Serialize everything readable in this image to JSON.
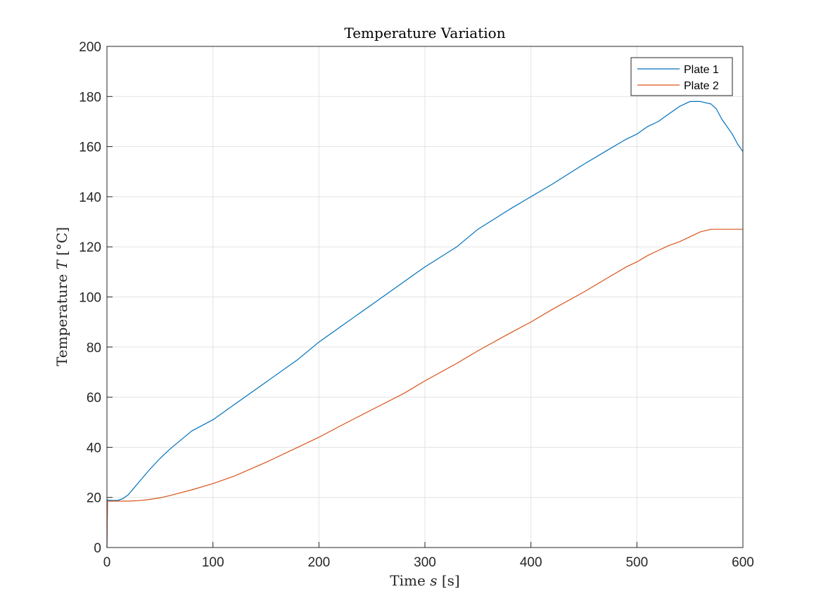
{
  "chart_data": {
    "type": "line",
    "title": "Temperature Variation",
    "xlabel": "Time s [s]",
    "ylabel": "Temperature T [°C]",
    "xlim": [
      0,
      600
    ],
    "ylim": [
      0,
      200
    ],
    "xticks": [
      0,
      100,
      200,
      300,
      400,
      500,
      600
    ],
    "yticks": [
      0,
      20,
      40,
      60,
      80,
      100,
      120,
      140,
      160,
      180,
      200
    ],
    "grid": true,
    "legend_position": "top-right",
    "series": [
      {
        "name": "Plate 1",
        "color": "#0072BD",
        "points": [
          [
            0,
            0
          ],
          [
            0.5,
            19
          ],
          [
            5,
            18.8
          ],
          [
            10,
            18.8
          ],
          [
            15,
            19.5
          ],
          [
            20,
            21
          ],
          [
            25,
            23.5
          ],
          [
            30,
            26
          ],
          [
            40,
            31
          ],
          [
            50,
            35.5
          ],
          [
            60,
            39.5
          ],
          [
            70,
            43
          ],
          [
            80,
            46.5
          ],
          [
            100,
            51
          ],
          [
            120,
            57
          ],
          [
            150,
            66
          ],
          [
            180,
            75
          ],
          [
            200,
            82
          ],
          [
            220,
            88
          ],
          [
            250,
            97
          ],
          [
            280,
            106
          ],
          [
            300,
            112
          ],
          [
            330,
            120
          ],
          [
            350,
            127
          ],
          [
            380,
            135
          ],
          [
            400,
            140
          ],
          [
            420,
            145
          ],
          [
            450,
            153
          ],
          [
            470,
            158
          ],
          [
            490,
            163
          ],
          [
            500,
            165
          ],
          [
            510,
            168
          ],
          [
            520,
            170
          ],
          [
            530,
            173
          ],
          [
            540,
            176
          ],
          [
            550,
            178
          ],
          [
            560,
            178
          ],
          [
            570,
            177
          ],
          [
            575,
            175
          ],
          [
            580,
            171
          ],
          [
            585,
            168
          ],
          [
            590,
            165
          ],
          [
            595,
            161
          ],
          [
            600,
            158
          ]
        ]
      },
      {
        "name": "Plate 2",
        "color": "#D95319",
        "points": [
          [
            0,
            0
          ],
          [
            0.5,
            18.5
          ],
          [
            10,
            18.5
          ],
          [
            20,
            18.5
          ],
          [
            30,
            18.7
          ],
          [
            40,
            19.2
          ],
          [
            50,
            19.8
          ],
          [
            60,
            20.8
          ],
          [
            80,
            23
          ],
          [
            100,
            25.5
          ],
          [
            120,
            28.5
          ],
          [
            150,
            34
          ],
          [
            180,
            40
          ],
          [
            200,
            44
          ],
          [
            220,
            48.5
          ],
          [
            250,
            55
          ],
          [
            280,
            61.5
          ],
          [
            300,
            66.5
          ],
          [
            330,
            73.5
          ],
          [
            350,
            78.5
          ],
          [
            380,
            85.5
          ],
          [
            400,
            90
          ],
          [
            420,
            95
          ],
          [
            450,
            102
          ],
          [
            470,
            107
          ],
          [
            490,
            112
          ],
          [
            500,
            114
          ],
          [
            510,
            116.5
          ],
          [
            520,
            118.5
          ],
          [
            530,
            120.5
          ],
          [
            540,
            122
          ],
          [
            550,
            124
          ],
          [
            560,
            126
          ],
          [
            570,
            127
          ],
          [
            580,
            127
          ],
          [
            590,
            127
          ],
          [
            600,
            127
          ]
        ]
      }
    ]
  }
}
